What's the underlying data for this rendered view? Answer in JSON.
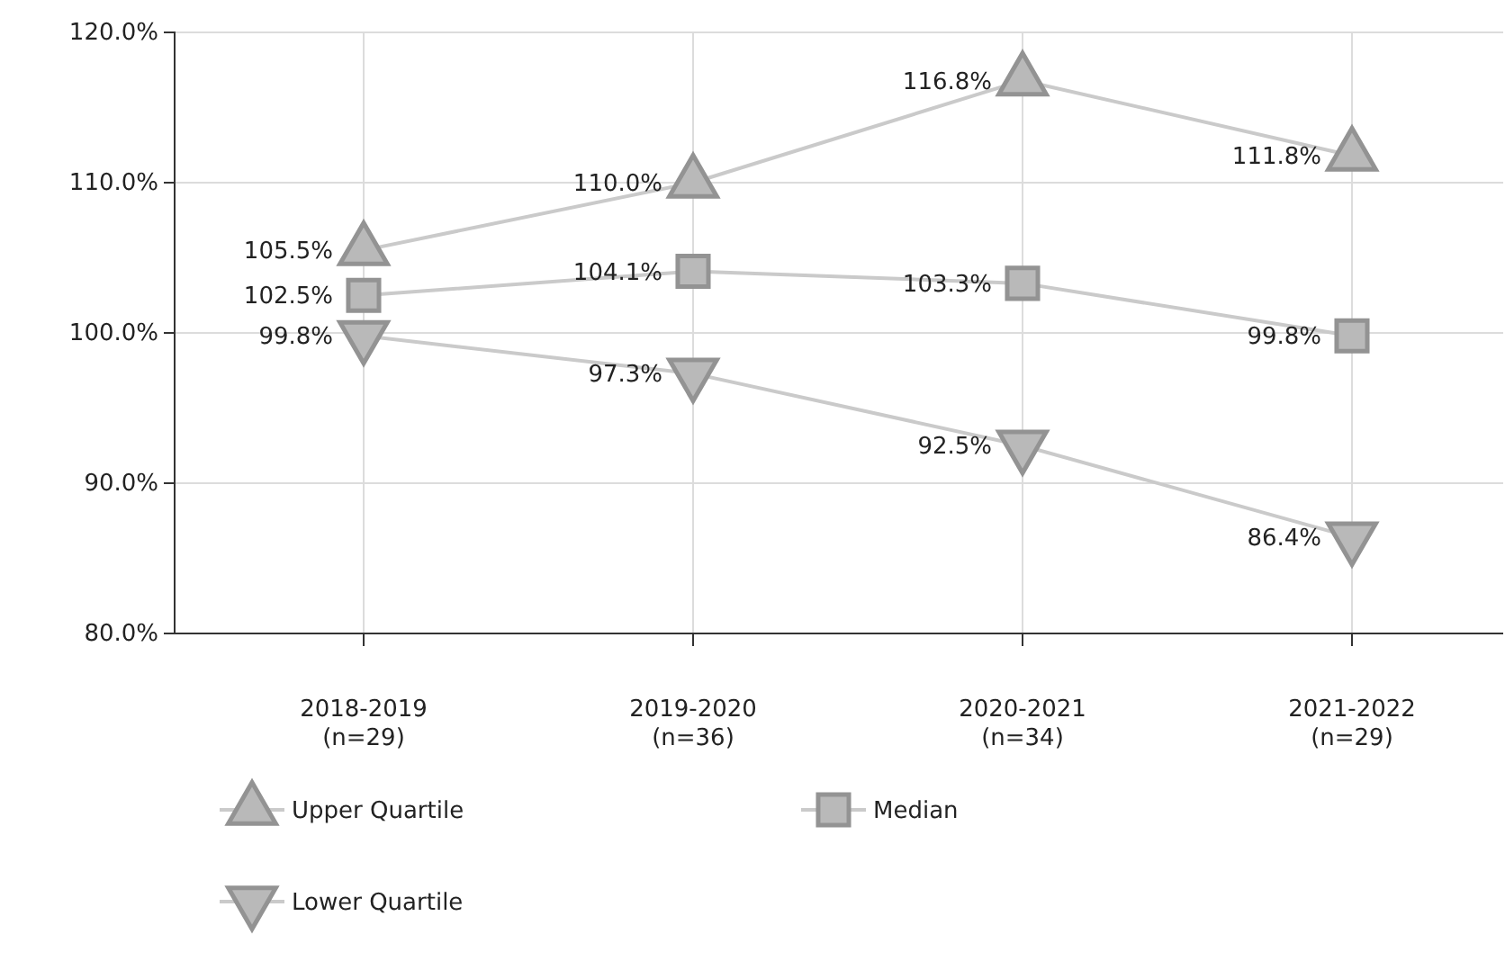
{
  "chart_data": {
    "type": "line",
    "categories": [
      "2018-2019\n(n=29)",
      "2019-2020\n(n=36)",
      "2020-2021\n(n=34)",
      "2021-2022\n(n=29)"
    ],
    "series": [
      {
        "name": "Upper Quartile",
        "color": "#a9a9a9",
        "marker": "triangle",
        "values": [
          105.5,
          110.0,
          116.8,
          111.8
        ],
        "value_labels": [
          "105.5%",
          "110.0%",
          "116.8%",
          "111.8%"
        ]
      },
      {
        "name": "Median",
        "color": "#a9a9a9",
        "marker": "square",
        "values": [
          102.5,
          104.1,
          103.3,
          99.8
        ],
        "value_labels": [
          "102.5%",
          "104.1%",
          "103.3%",
          "99.8%"
        ]
      },
      {
        "name": "Lower Quartile",
        "color": "#a9a9a9",
        "marker": "triangle-down",
        "values": [
          99.8,
          97.3,
          92.5,
          86.4
        ],
        "value_labels": [
          "99.8%",
          "97.3%",
          "92.5%",
          "86.4%"
        ]
      }
    ],
    "ylim": [
      80,
      120
    ],
    "yticks": [
      {
        "value": 80,
        "label": "80.0%"
      },
      {
        "value": 90,
        "label": "90.0%"
      },
      {
        "value": 100,
        "label": "100.0%"
      },
      {
        "value": 110,
        "label": "110.0%"
      },
      {
        "value": 120,
        "label": "120.0%"
      }
    ],
    "grid": true,
    "legend": "bottom"
  }
}
